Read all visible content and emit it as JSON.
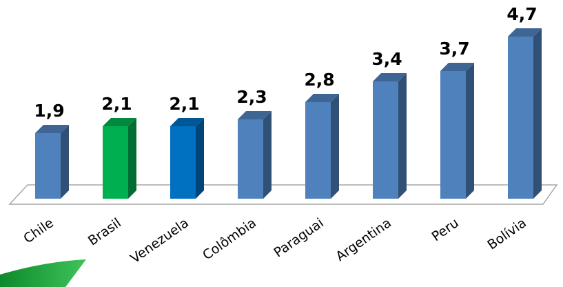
{
  "chart_data": {
    "type": "bar",
    "title": "",
    "xlabel": "",
    "ylabel": "",
    "categories": [
      "Chile",
      "Brasil",
      "Venezuela",
      "Colômbia",
      "Paraguai",
      "Argentina",
      "Peru",
      "Bolívia"
    ],
    "values": [
      1.9,
      2.1,
      2.1,
      2.3,
      2.8,
      3.4,
      3.7,
      4.7
    ],
    "value_labels": [
      "1,9",
      "2,1",
      "2,1",
      "2,3",
      "2,8",
      "3,4",
      "3,7",
      "4,7"
    ],
    "bar_colors": [
      "#4f81bd",
      "#00b050",
      "#0070c0",
      "#4f81bd",
      "#4f81bd",
      "#4f81bd",
      "#4f81bd",
      "#4f81bd"
    ],
    "three_d": true,
    "grid": false,
    "legend": "none"
  },
  "decoration": {
    "accent_color": "#1aa33a"
  }
}
